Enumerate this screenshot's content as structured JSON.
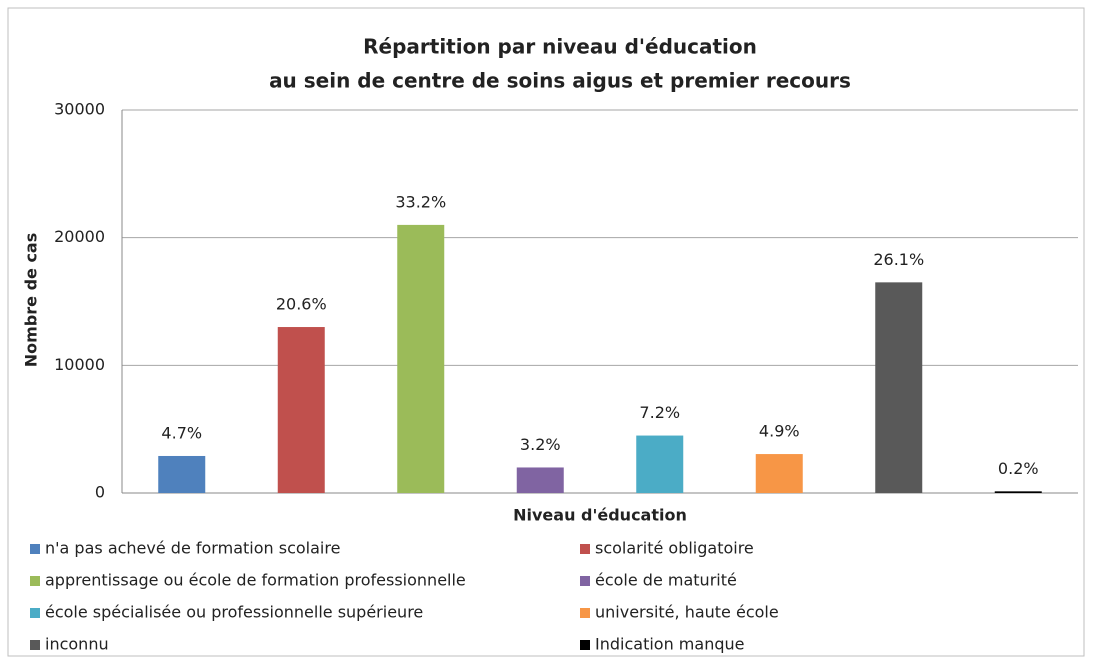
{
  "chart_data": {
    "type": "bar",
    "title": [
      "Répartition par niveau d'éducation",
      "au sein de centre de soins aigus et premier recours"
    ],
    "x_label": "Niveau d'éducation",
    "y_label": "Nombre de cas",
    "categories": [
      null
    ],
    "series": [
      {
        "name": "n'a pas achevé de formation scolaire",
        "color": "#4f81bd",
        "values": [
          2900
        ],
        "labels": [
          "4.7%"
        ]
      },
      {
        "name": "scolarité obligatoire",
        "color": "#c0504d",
        "values": [
          13000
        ],
        "labels": [
          "20.6%"
        ]
      },
      {
        "name": "apprentissage ou école de formation professionnelle",
        "color": "#9bbb59",
        "values": [
          21000
        ],
        "labels": [
          "33.2%"
        ]
      },
      {
        "name": "école de maturité",
        "color": "#8064a2",
        "values": [
          2000
        ],
        "labels": [
          "3.2%"
        ]
      },
      {
        "name": "école spécialisée ou professionnelle supérieure",
        "color": "#4bacc6",
        "values": [
          4500
        ],
        "labels": [
          "7.2%"
        ]
      },
      {
        "name": "université, haute école",
        "color": "#f79646",
        "values": [
          3050
        ],
        "labels": [
          "4.9%"
        ]
      },
      {
        "name": "inconnu",
        "color": "#595959",
        "values": [
          16500
        ],
        "labels": [
          "26.1%"
        ]
      },
      {
        "name": "Indication manque",
        "color": "#000000",
        "values": [
          130
        ],
        "labels": [
          "0.2%"
        ]
      }
    ],
    "ylim": [
      0,
      30000
    ],
    "yticks": [
      0,
      10000,
      20000,
      30000
    ],
    "grid": true,
    "legend": "bottom"
  }
}
